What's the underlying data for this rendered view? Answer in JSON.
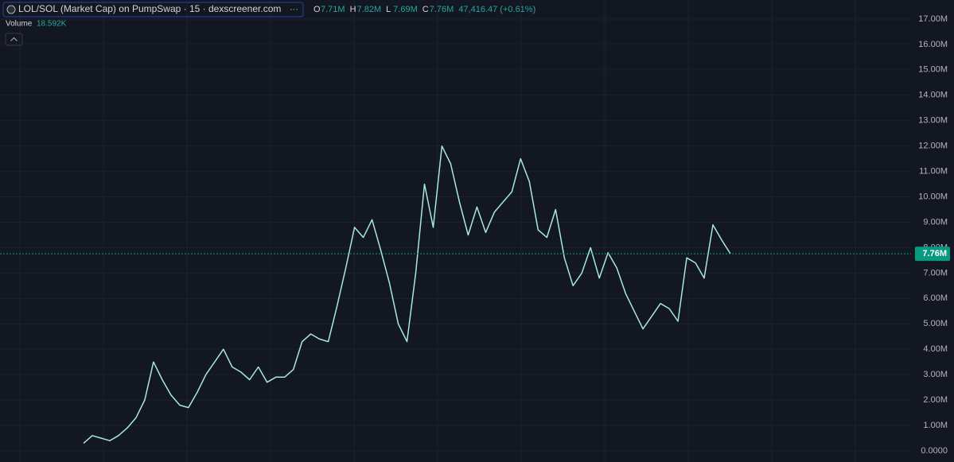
{
  "chart_data": {
    "type": "line",
    "title": "LOL/SOL (Market Cap) on PumpSwap · 15 · dexscreener.com",
    "ohlc": [
      {
        "key": "O",
        "text": "7.71M"
      },
      {
        "key": "H",
        "text": "7.82M"
      },
      {
        "key": "L",
        "text": "7.69M"
      },
      {
        "key": "C",
        "text": "7.76M"
      }
    ],
    "change": "47,416.47 (+0.61%)",
    "volume_label": "Volume",
    "volume_value": "18.592K",
    "series": [
      {
        "color": "#a7e8df",
        "values": [
          0.3,
          0.6,
          0.5,
          0.4,
          0.6,
          0.9,
          1.3,
          2.0,
          3.5,
          2.8,
          2.2,
          1.8,
          1.7,
          2.3,
          3.0,
          3.5,
          4.0,
          3.3,
          3.1,
          2.8,
          3.3,
          2.7,
          2.9,
          2.9,
          3.2,
          4.3,
          4.6,
          4.4,
          4.3,
          5.7,
          7.2,
          8.8,
          8.4,
          9.1,
          7.9,
          6.6,
          5.0,
          4.3,
          7.0,
          10.5,
          8.8,
          12.0,
          11.3,
          9.8,
          8.5,
          9.6,
          8.6,
          9.4,
          9.8,
          10.2,
          11.5,
          10.6,
          8.7,
          8.4,
          9.5,
          7.6,
          6.5,
          7.0,
          8.0,
          6.8,
          7.8,
          7.2,
          6.2,
          5.5,
          4.8,
          5.3,
          5.8,
          5.6,
          5.1,
          7.6,
          7.4,
          6.8,
          8.9,
          8.3,
          7.76
        ]
      }
    ],
    "last_value": 7.76,
    "last_value_label": "7.76M",
    "last_color": "#089981",
    "ylim": [
      -0.44,
      17.75
    ],
    "yticks": [
      {
        "value": 0,
        "label": "0.0000"
      },
      {
        "value": 1,
        "label": "1.00M"
      },
      {
        "value": 2,
        "label": "2.00M"
      },
      {
        "value": 3,
        "label": "3.00M"
      },
      {
        "value": 4,
        "label": "4.00M"
      },
      {
        "value": 5,
        "label": "5.00M"
      },
      {
        "value": 6,
        "label": "6.00M"
      },
      {
        "value": 7,
        "label": "7.00M"
      },
      {
        "value": 8,
        "label": "8.00M"
      },
      {
        "value": 9,
        "label": "9.00M"
      },
      {
        "value": 10,
        "label": "10.00M"
      },
      {
        "value": 11,
        "label": "11.00M"
      },
      {
        "value": 12,
        "label": "12.00M"
      },
      {
        "value": 13,
        "label": "13.00M"
      },
      {
        "value": 14,
        "label": "14.00M"
      },
      {
        "value": 15,
        "label": "15.00M"
      },
      {
        "value": 16,
        "label": "16.00M"
      },
      {
        "value": 17,
        "label": "17.00M"
      }
    ],
    "grid": true
  }
}
